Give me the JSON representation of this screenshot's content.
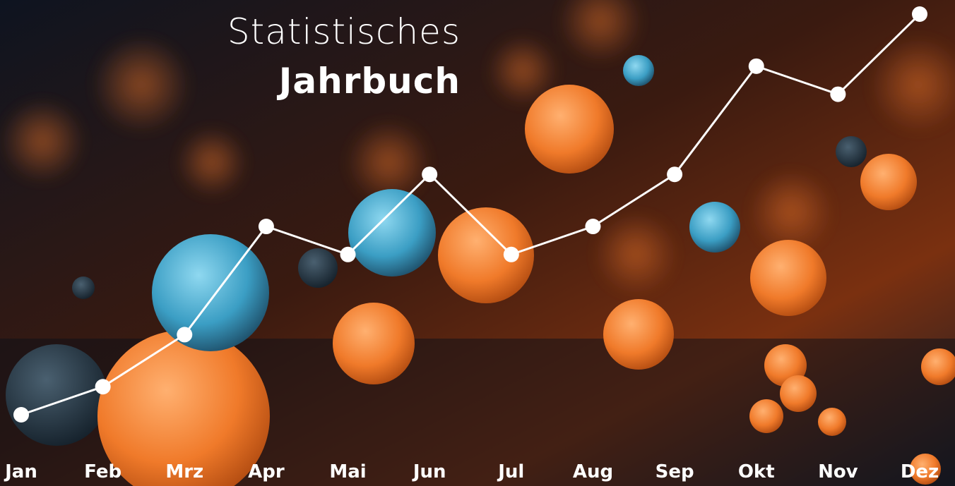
{
  "chart_data": {
    "type": "line",
    "title": "Statistisches",
    "subtitle": "Jahrbuch",
    "categories": [
      "Jan",
      "Feb",
      "Mrz",
      "Apr",
      "Mai",
      "Jun",
      "Jul",
      "Aug",
      "Sep",
      "Okt",
      "Nov",
      "Dez"
    ],
    "values": [
      0,
      7,
      20,
      47,
      40,
      60,
      40,
      47,
      60,
      87,
      80,
      100
    ],
    "color": "#ffffff",
    "ylim": [
      0,
      100
    ],
    "grid": false
  }
}
